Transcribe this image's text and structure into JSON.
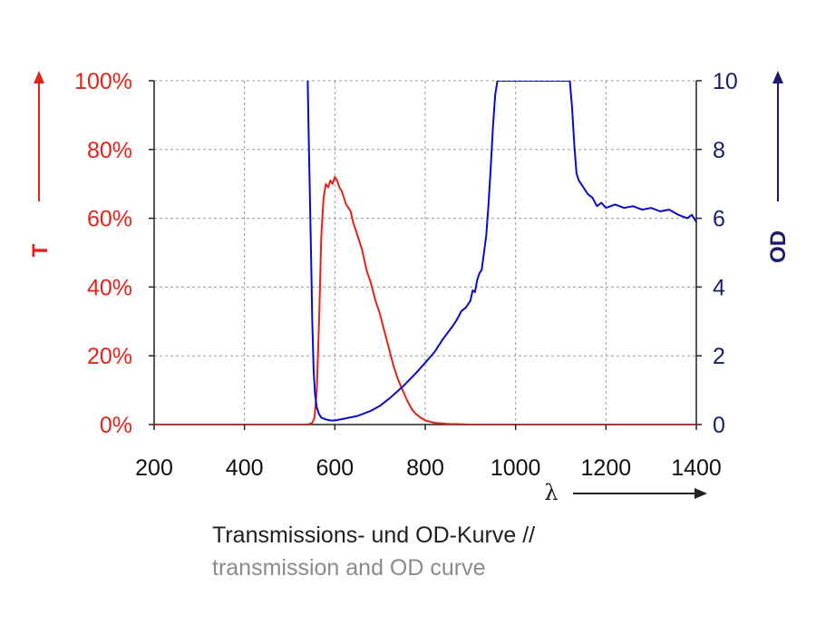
{
  "chart_data": {
    "type": "line",
    "caption_primary": "Transmissions- und OD-Kurve //",
    "caption_secondary": "transmission and OD curve",
    "xlabel": "λ",
    "ylabel_left": "T",
    "ylabel_right": "OD",
    "xlim": [
      200,
      1400
    ],
    "ylim_left": [
      0,
      100
    ],
    "ylim_right": [
      0,
      10
    ],
    "x_ticks": [
      "200",
      "400",
      "600",
      "800",
      "1000",
      "1200",
      "1400"
    ],
    "y_left_ticks": [
      "0%",
      "20%",
      "40%",
      "60%",
      "80%",
      "100%"
    ],
    "y_right_ticks": [
      "0",
      "2",
      "4",
      "6",
      "8",
      "10"
    ],
    "grid": true,
    "colors": {
      "transmission": "#e2231a",
      "od": "#0a0ac8",
      "left_axis": "#e2231a",
      "right_axis": "#1c1c6e",
      "x_arrow": "#222222"
    },
    "series": [
      {
        "axis": "left",
        "x": [
          200,
          540,
          550,
          555,
          560,
          565,
          570,
          575,
          580,
          585,
          590,
          595,
          600,
          605,
          610,
          615,
          620,
          625,
          630,
          635,
          640,
          650,
          660,
          670,
          680,
          690,
          700,
          710,
          720,
          730,
          740,
          750,
          760,
          770,
          780,
          790,
          800,
          820,
          850,
          900,
          1400
        ],
        "y": [
          0,
          0,
          0.5,
          2,
          10,
          30,
          55,
          66,
          70,
          69,
          71,
          70,
          72,
          71,
          69,
          68,
          66,
          64,
          63,
          62,
          59,
          55,
          51,
          45,
          41,
          36,
          32,
          27,
          22,
          17,
          13,
          10,
          7,
          4.5,
          3,
          2,
          1.2,
          0.5,
          0.2,
          0,
          0
        ]
      },
      {
        "axis": "right",
        "x": [
          540,
          542,
          545,
          548,
          550,
          553,
          556,
          560,
          565,
          570,
          580,
          590,
          600,
          620,
          650,
          680,
          700,
          720,
          750,
          780,
          800,
          820,
          840,
          860,
          870,
          880,
          890,
          900,
          905,
          910,
          915,
          920,
          925,
          930,
          935,
          940,
          945,
          950,
          955,
          960,
          1120,
          1125,
          1130,
          1135,
          1140,
          1150,
          1160,
          1170,
          1180,
          1190,
          1200,
          1220,
          1240,
          1260,
          1280,
          1300,
          1320,
          1340,
          1360,
          1380,
          1390,
          1400
        ],
        "y": [
          10,
          8.5,
          6.5,
          4.5,
          3.0,
          1.6,
          0.9,
          0.5,
          0.3,
          0.2,
          0.15,
          0.12,
          0.12,
          0.17,
          0.25,
          0.4,
          0.55,
          0.75,
          1.1,
          1.5,
          1.8,
          2.1,
          2.5,
          2.85,
          3.05,
          3.3,
          3.4,
          3.6,
          3.9,
          3.85,
          4.2,
          4.4,
          4.5,
          5.0,
          5.5,
          6.4,
          7.5,
          8.7,
          9.6,
          10,
          10,
          9.2,
          8.1,
          7.3,
          7.1,
          6.9,
          6.7,
          6.6,
          6.35,
          6.45,
          6.3,
          6.4,
          6.3,
          6.35,
          6.25,
          6.3,
          6.2,
          6.25,
          6.1,
          6.0,
          6.1,
          5.9
        ]
      }
    ]
  }
}
